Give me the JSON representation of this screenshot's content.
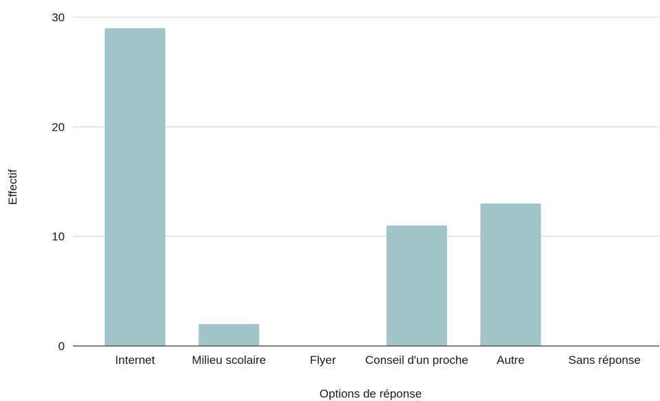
{
  "chart_data": {
    "type": "bar",
    "categories": [
      "Internet",
      "Milieu scolaire",
      "Flyer",
      "Conseil d'un proche",
      "Autre",
      "Sans réponse"
    ],
    "values": [
      29,
      2,
      0,
      11,
      13,
      0
    ],
    "title": "",
    "xlabel": "Options de réponse",
    "ylabel": "Effectif",
    "ylim": [
      0,
      30
    ],
    "yticks": [
      "0",
      "10",
      "20",
      "30"
    ],
    "grid": true,
    "legend": "none",
    "bar_color": "#a3c4c8"
  }
}
